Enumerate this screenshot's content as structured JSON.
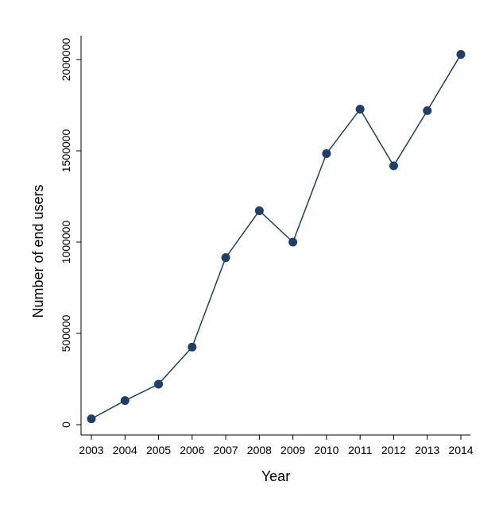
{
  "chart_data": {
    "type": "line",
    "title": "",
    "xlabel": "Year",
    "ylabel": "Number of end users",
    "x": [
      2003,
      2004,
      2005,
      2006,
      2007,
      2008,
      2009,
      2010,
      2011,
      2012,
      2013,
      2014
    ],
    "series": [
      {
        "values": [
          32000,
          132000,
          222000,
          425000,
          915000,
          1172000,
          1000000,
          1485000,
          1728000,
          1418000,
          1720000,
          2028000
        ]
      }
    ],
    "xticks": [
      "2003",
      "2004",
      "2005",
      "2006",
      "2007",
      "2008",
      "2009",
      "2010",
      "2011",
      "2012",
      "2013",
      "2014"
    ],
    "yticks": [
      0,
      500000,
      1000000,
      1500000,
      2000000
    ],
    "ytick_labels": [
      "0",
      "500000",
      "1000000",
      "1500000",
      "2000000"
    ],
    "xlim": [
      2003,
      2014
    ],
    "ylim": [
      0,
      2000000
    ],
    "grid": false,
    "legend": "none",
    "colors": {
      "series": "#1f3f66",
      "axis": "#000000"
    }
  }
}
